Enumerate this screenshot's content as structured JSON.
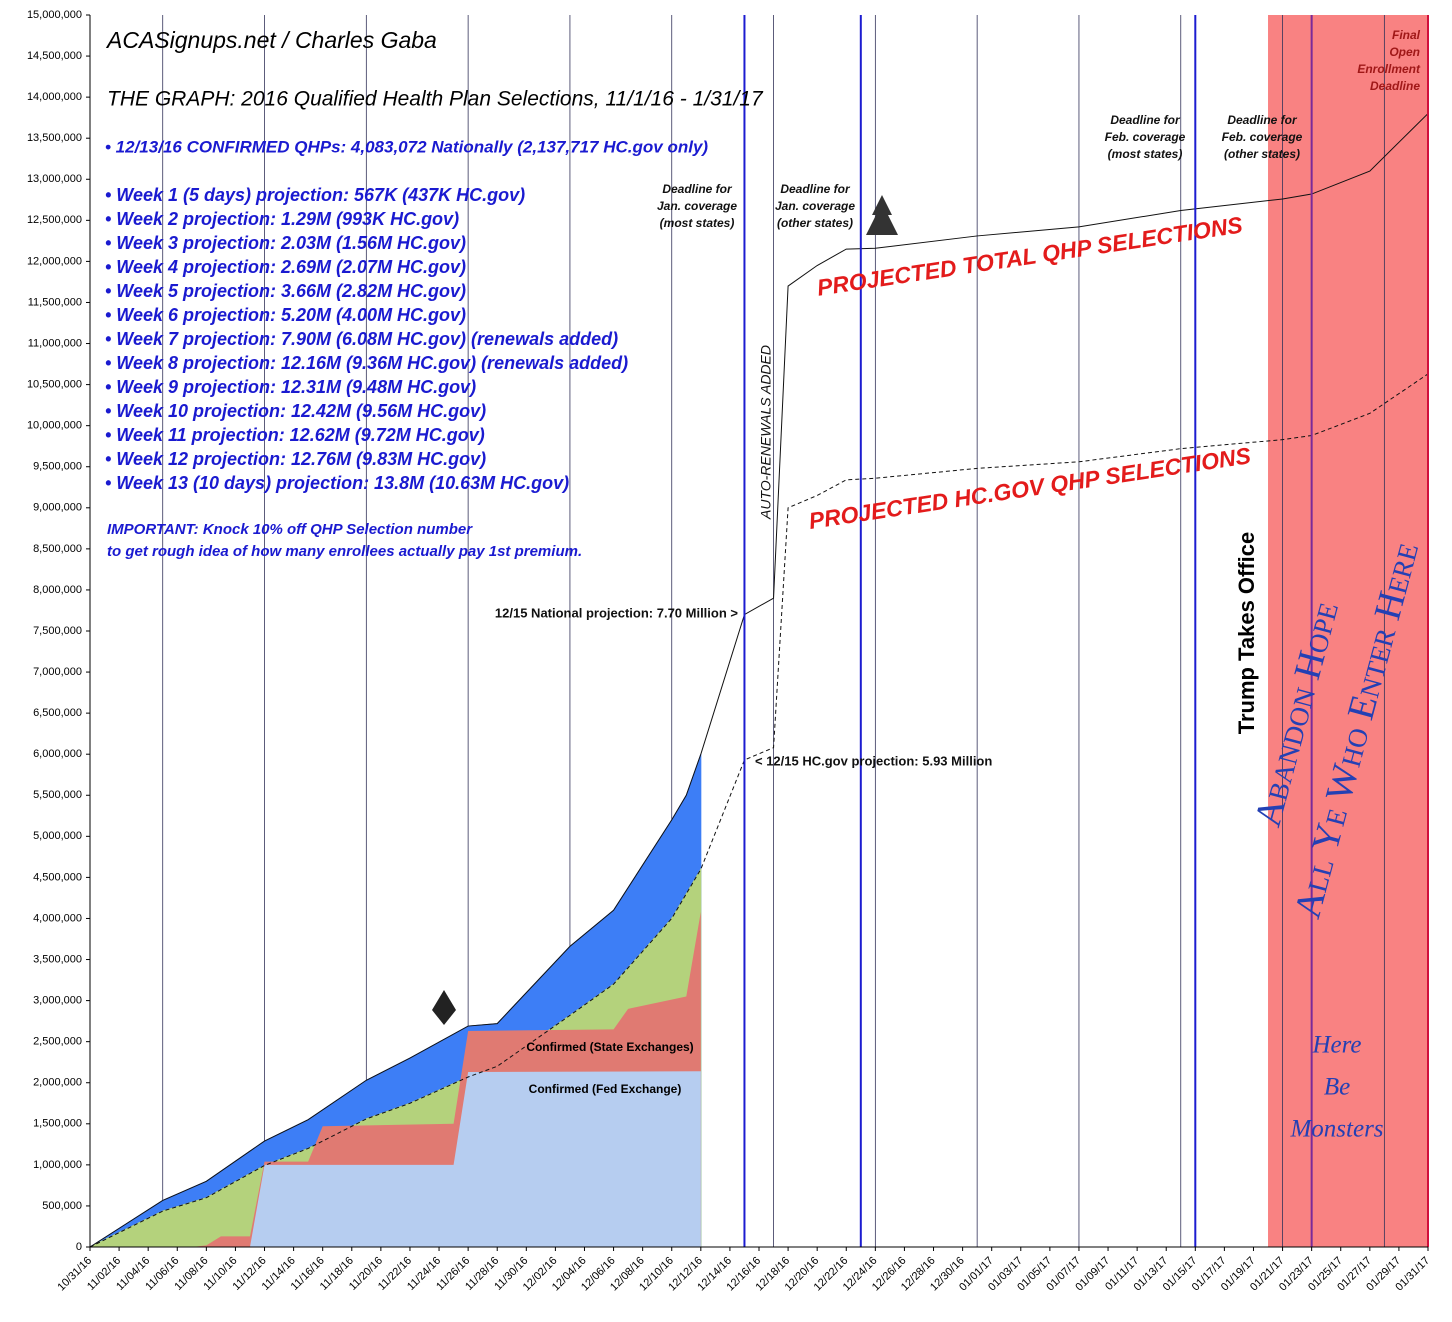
{
  "chart_data": {
    "type": "area",
    "title": "ACASignups.net / Charles Gaba",
    "subtitle": "THE GRAPH: 2016 Qualified Health Plan Selections, 11/1/16 - 1/31/17",
    "notes": [
      "• 12/13/16 CONFIRMED QHPs: 4,083,072 Nationally (2,137,717 HC.gov only)",
      "• Week 1 (5 days) projection: 567K (437K HC.gov)",
      "• Week 2 projection: 1.29M (993K HC.gov)",
      "• Week 3 projection: 2.03M (1.56M HC.gov)",
      "• Week 4 projection: 2.69M (2.07M HC.gov)",
      "• Week 5 projection: 3.66M (2.82M HC.gov)",
      "• Week 6 projection: 5.20M (4.00M HC.gov)",
      "• Week 7 projection: 7.90M (6.08M HC.gov) (renewals added)",
      "• Week 8 projection: 12.16M (9.36M HC.gov) (renewals added)",
      "• Week 9 projection: 12.31M (9.48M HC.gov)",
      "• Week 10 projection: 12.42M (9.56M HC.gov)",
      "• Week 11 projection: 12.62M (9.72M HC.gov)",
      "• Week 12 projection: 12.76M (9.83M HC.gov)",
      "• Week 13 (10 days) projection: 13.8M (10.63M HC.gov)"
    ],
    "footnote": [
      "IMPORTANT: Knock 10% off QHP Selection number",
      "to get rough idea of how many enrollees actually pay 1st premium."
    ],
    "xlim": [
      "10/31/16",
      "01/31/17"
    ],
    "xticks": [
      "10/31/16",
      "11/02/16",
      "11/04/16",
      "11/06/16",
      "11/08/16",
      "11/10/16",
      "11/12/16",
      "11/14/16",
      "11/16/16",
      "11/18/16",
      "11/20/16",
      "11/22/16",
      "11/24/16",
      "11/26/16",
      "11/28/16",
      "11/30/16",
      "12/02/16",
      "12/04/16",
      "12/06/16",
      "12/08/16",
      "12/10/16",
      "12/12/16",
      "12/14/16",
      "12/16/16",
      "12/18/16",
      "12/20/16",
      "12/22/16",
      "12/24/16",
      "12/26/16",
      "12/28/16",
      "12/30/16",
      "01/01/17",
      "01/03/17",
      "01/05/17",
      "01/07/17",
      "01/09/17",
      "01/11/17",
      "01/13/17",
      "01/15/17",
      "01/17/17",
      "01/19/17",
      "01/21/17",
      "01/23/17",
      "01/25/17",
      "01/27/17",
      "01/29/17",
      "01/31/17"
    ],
    "ylim": [
      0,
      15000000
    ],
    "yticks": [
      0,
      {
        "value": 500000,
        "label": "500,000"
      },
      {
        "value": 1000000,
        "label": "1,000,000"
      },
      {
        "value": 1500000,
        "label": "1,500,000"
      },
      {
        "value": 2000000,
        "label": "2,000,000"
      },
      {
        "value": 2500000,
        "label": "2,500,000"
      },
      {
        "value": 3000000,
        "label": "3,000,000"
      },
      {
        "value": 3500000,
        "label": "3,500,000"
      },
      {
        "value": 4000000,
        "label": "4,000,000"
      },
      {
        "value": 4500000,
        "label": "4,500,000"
      },
      {
        "value": 5000000,
        "label": "5,000,000"
      },
      {
        "value": 5500000,
        "label": "5,500,000"
      },
      {
        "value": 6000000,
        "label": "6,000,000"
      },
      {
        "value": 6500000,
        "label": "6,500,000"
      },
      {
        "value": 7000000,
        "label": "7,000,000"
      },
      {
        "value": 7500000,
        "label": "7,500,000"
      },
      {
        "value": 8000000,
        "label": "8,000,000"
      },
      {
        "value": 8500000,
        "label": "8,500,000"
      },
      {
        "value": 9000000,
        "label": "9,000,000"
      },
      {
        "value": 9500000,
        "label": "9,500,000"
      },
      {
        "value": 10000000,
        "label": "10,000,000"
      },
      {
        "value": 10500000,
        "label": "10,500,000"
      },
      {
        "value": 11000000,
        "label": "11,000,000"
      },
      {
        "value": 11500000,
        "label": "11,500,000"
      },
      {
        "value": 12000000,
        "label": "12,000,000"
      },
      {
        "value": 12500000,
        "label": "12,500,000"
      },
      {
        "value": 13000000,
        "label": "13,000,000"
      },
      {
        "value": 13500000,
        "label": "13,500,000"
      },
      {
        "value": 14000000,
        "label": "14,000,000"
      },
      {
        "value": 14500000,
        "label": "14,500,000"
      },
      {
        "value": 15000000,
        "label": "15,000,000"
      }
    ],
    "week_lines": [
      "11/05/16",
      "11/12/16",
      "11/19/16",
      "11/26/16",
      "12/03/16",
      "12/10/16",
      "12/17/16",
      "12/24/16",
      "12/31/16",
      "01/07/17",
      "01/14/17",
      "01/21/17",
      "01/28/17"
    ],
    "shaded_band": {
      "from": "01/20/17",
      "to": "01/31/17",
      "color": "#f98282"
    },
    "event_lines": [
      {
        "x": "12/15/16",
        "color": "#1c1cd0"
      },
      {
        "x": "12/23/16",
        "color": "#1c1cd0"
      },
      {
        "x": "01/15/17",
        "color": "#1c1cd0"
      },
      {
        "x": "01/23/17",
        "color": "#7a2a9a"
      },
      {
        "x": "01/31/17",
        "color": "#d0103c"
      }
    ],
    "series": [
      {
        "name": "PROJECTED TOTAL QHP SELECTIONS",
        "color": "#3d7ef6",
        "line": "solid",
        "x": [
          "10/31/16",
          "11/05/16",
          "11/08/16",
          "11/12/16",
          "11/15/16",
          "11/19/16",
          "11/22/16",
          "11/26/16",
          "11/28/16",
          "12/03/16",
          "12/06/16",
          "12/10/16",
          "12/11/16",
          "12/12/16",
          "12/15/16",
          "12/17/16",
          "12/18/16",
          "12/20/16",
          "12/22/16",
          "12/24/16",
          "12/31/16",
          "01/07/17",
          "01/14/17",
          "01/21/17",
          "01/23/17",
          "01/27/17",
          "01/31/17"
        ],
        "values": [
          0,
          567000,
          800000,
          1290000,
          1550000,
          2030000,
          2300000,
          2690000,
          2720000,
          3660000,
          4100000,
          5200000,
          5500000,
          6000000,
          7700000,
          7900000,
          11700000,
          11950000,
          12150000,
          12160000,
          12310000,
          12420000,
          12620000,
          12760000,
          12820000,
          13100000,
          13800000
        ]
      },
      {
        "name": "PROJECTED HC.GOV QHP SELECTIONS",
        "color": "#b4d27c",
        "line": "dashed",
        "x": [
          "10/31/16",
          "11/05/16",
          "11/08/16",
          "11/12/16",
          "11/15/16",
          "11/19/16",
          "11/22/16",
          "11/26/16",
          "11/28/16",
          "12/03/16",
          "12/06/16",
          "12/10/16",
          "12/11/16",
          "12/12/16",
          "12/15/16",
          "12/17/16",
          "12/18/16",
          "12/20/16",
          "12/22/16",
          "12/24/16",
          "12/31/16",
          "01/07/17",
          "01/14/17",
          "01/21/17",
          "01/23/17",
          "01/27/17",
          "01/31/17"
        ],
        "values": [
          0,
          437000,
          600000,
          993000,
          1200000,
          1560000,
          1750000,
          2070000,
          2200000,
          2820000,
          3200000,
          4000000,
          4300000,
          4600000,
          5930000,
          6080000,
          9000000,
          9150000,
          9340000,
          9360000,
          9480000,
          9560000,
          9720000,
          9830000,
          9880000,
          10150000,
          10630000
        ]
      },
      {
        "name": "Confirmed (State Exchanges)",
        "color": "#e07a72",
        "x": [
          "10/31/16",
          "11/07/16",
          "11/08/16",
          "11/09/16",
          "11/11/16",
          "11/12/16",
          "11/15/16",
          "11/16/16",
          "11/25/16",
          "11/26/16",
          "12/06/16",
          "12/07/16",
          "12/11/16",
          "12/12/16"
        ],
        "values": [
          0,
          0,
          20000,
          130000,
          130000,
          1040000,
          1040000,
          1470000,
          1500000,
          2630000,
          2650000,
          2900000,
          3050000,
          4080000
        ]
      },
      {
        "name": "Confirmed (Fed Exchange)",
        "color": "#b6cdf0",
        "x": [
          "10/31/16",
          "11/11/16",
          "11/12/16",
          "11/25/16",
          "11/26/16",
          "12/12/16"
        ],
        "values": [
          0,
          0,
          1000000,
          1000000,
          2130000,
          2140000
        ]
      }
    ],
    "annotations": [
      {
        "lines": [
          "12/15 National projection: 7.70 Million >"
        ],
        "color": "#111111"
      },
      {
        "lines": [
          "< 12/15 HC.gov projection: 5.93 Million"
        ],
        "color": "#111111"
      },
      {
        "lines": [
          "Deadline for",
          "Jan. coverage",
          "(most states)"
        ],
        "color": "#111111"
      },
      {
        "lines": [
          "Deadline for",
          "Jan. coverage",
          "(other states)"
        ],
        "color": "#111111"
      },
      {
        "lines": [
          "Deadline for",
          "Feb. coverage",
          "(most states)"
        ],
        "color": "#111111"
      },
      {
        "lines": [
          "Deadline for",
          "Feb. coverage",
          "(other states)"
        ],
        "color": "#111111"
      },
      {
        "lines": [
          "Final",
          "Open",
          "Enrollment",
          "Deadline"
        ],
        "color": "#a01818"
      },
      {
        "lines": [
          "AUTO-RENEWALS ADDED"
        ],
        "color": "#111111"
      },
      {
        "lines": [
          "Trump Takes Office"
        ],
        "color": "#000000"
      },
      {
        "lines": [
          "Abandon Hope",
          "All Ye Who Enter Here"
        ],
        "color": "#2440b4"
      },
      {
        "lines": [
          "Here",
          "Be",
          "Monsters"
        ],
        "color": "#2440b4"
      }
    ]
  }
}
